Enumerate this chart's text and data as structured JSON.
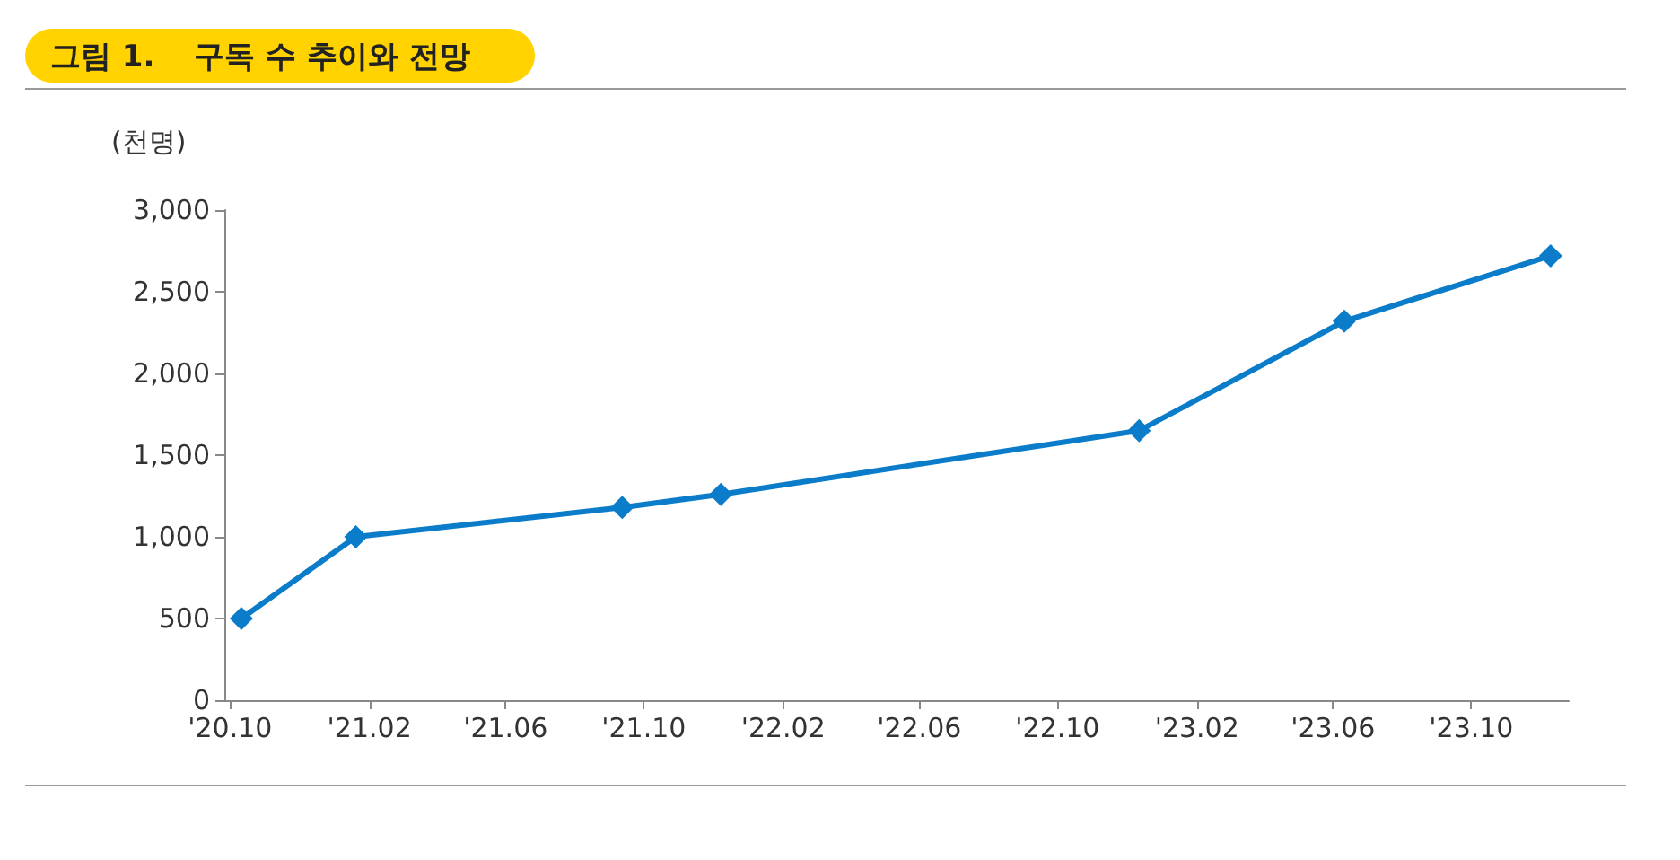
{
  "chart_data": {
    "type": "line",
    "title": "그림 1.",
    "subtitle": "구독 수 추이와 전망",
    "ylabel": "(천명)",
    "x": [
      "2020-10-11",
      "2021-01-20",
      "2021-09-12",
      "2021-12-08",
      "2022-12-12",
      "2023-06-11",
      "2023-12-10"
    ],
    "series": [
      {
        "color": "#0a7cc9",
        "values": [
          500,
          1000,
          1180,
          1260,
          1650,
          2320,
          2720
        ]
      }
    ],
    "xlim": [
      "2020-09-26",
      "2023-12-26"
    ],
    "xticks": [
      {
        "value": "2020-10",
        "label": "'20.10"
      },
      {
        "value": "2021-02",
        "label": "'21.02"
      },
      {
        "value": "2021-06",
        "label": "'21.06"
      },
      {
        "value": "2021-10",
        "label": "'21.10"
      },
      {
        "value": "2022-02",
        "label": "'22.02"
      },
      {
        "value": "2022-06",
        "label": "'22.06"
      },
      {
        "value": "2022-10",
        "label": "'22.10"
      },
      {
        "value": "2023-02",
        "label": "'23.02"
      },
      {
        "value": "2023-06",
        "label": "'23.06"
      },
      {
        "value": "2023-10",
        "label": "'23.10"
      }
    ],
    "ylim": [
      0,
      3000
    ],
    "yticks": [
      {
        "value": 0,
        "label": "0"
      },
      {
        "value": 500,
        "label": "500"
      },
      {
        "value": 1000,
        "label": "1,000"
      },
      {
        "value": 1500,
        "label": "1,500"
      },
      {
        "value": 2000,
        "label": "2,000"
      },
      {
        "value": 2500,
        "label": "2,500"
      },
      {
        "value": 3000,
        "label": "3,000"
      }
    ],
    "grid": false,
    "marker": "diamond",
    "line_style": "solid"
  }
}
